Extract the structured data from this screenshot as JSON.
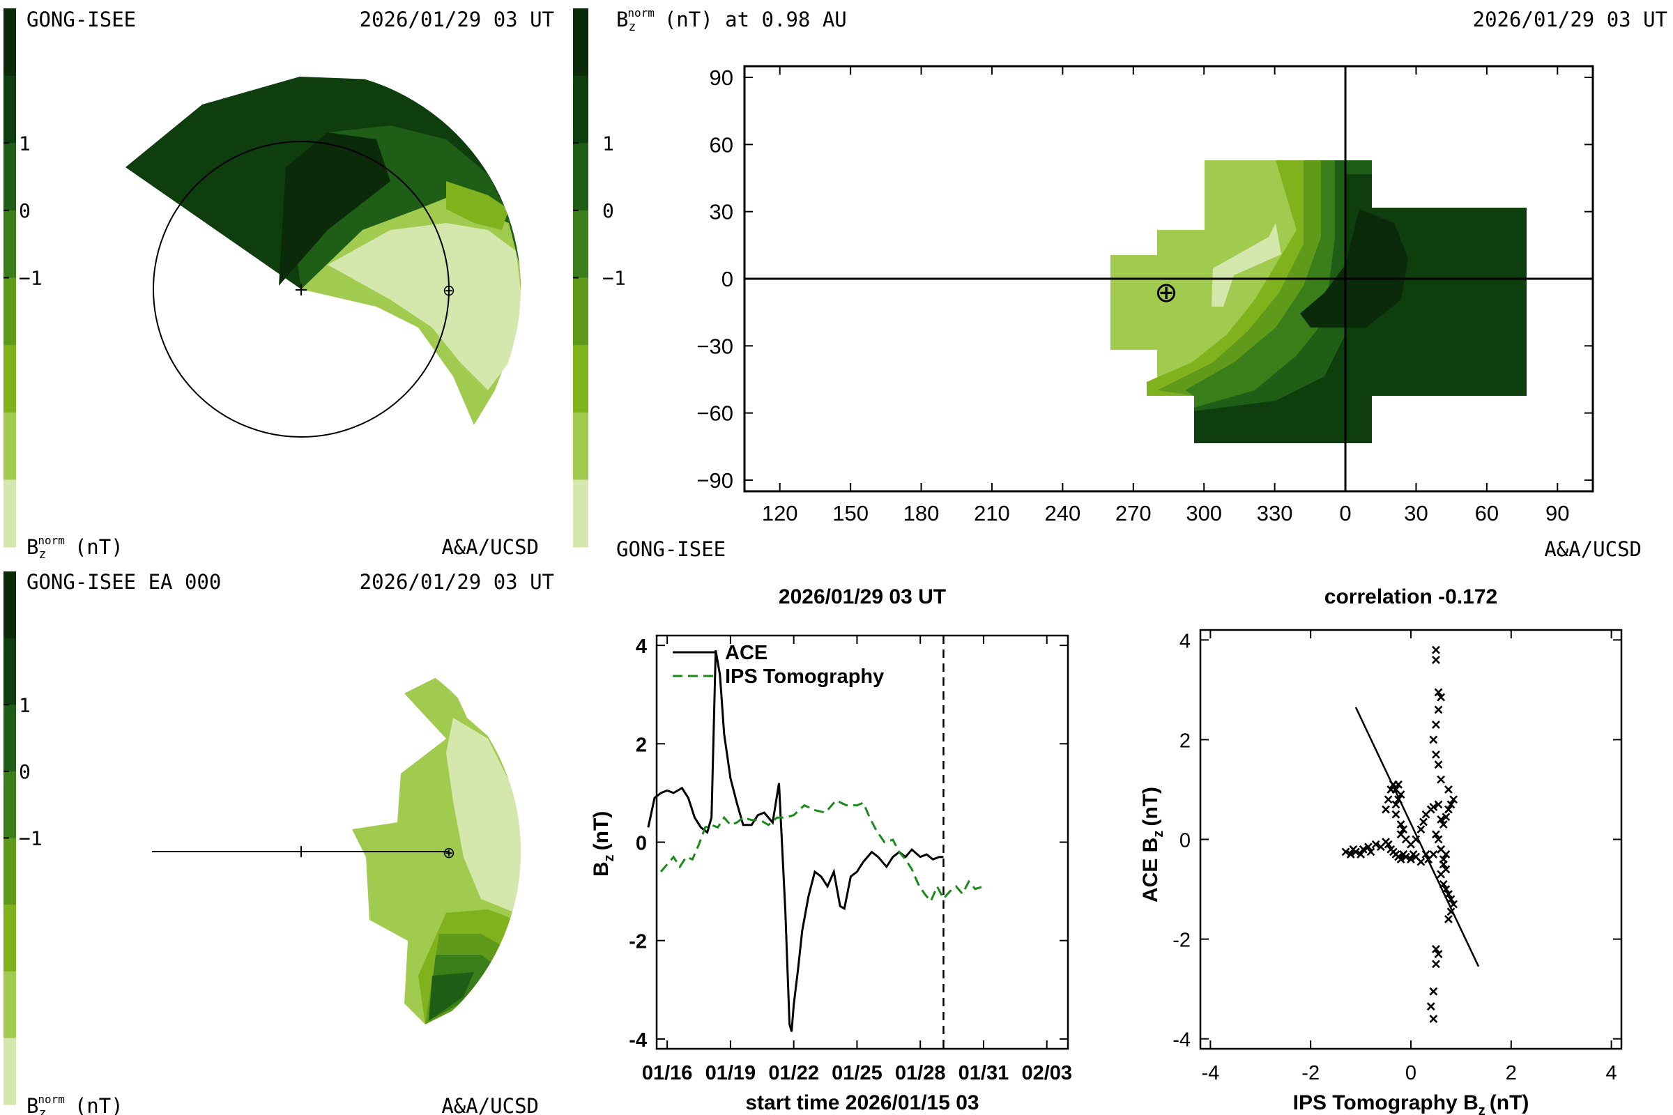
{
  "colors": {
    "level_-4": "#d4e7ad",
    "level_-3": "#a1cb4f",
    "level_-2": "#7fb21c",
    "level_-1": "#5f9a1a",
    "level_0": "#3a7e19",
    "level_1": "#1f5e16",
    "level_2": "#0f3e0e",
    "level_3": "#0b2a09",
    "ace_line": "#000000",
    "ips_line": "#1a8a1a"
  },
  "colorbar": {
    "levels": [
      -4,
      -3,
      -2,
      -1,
      0,
      1,
      2,
      3
    ],
    "ticks": [
      "1",
      "0",
      "−1"
    ],
    "label_main": "B",
    "label_sub": "z",
    "label_sup": "norm",
    "label_unit": "(nT)"
  },
  "panel_top_left": {
    "title_left": "GONG-ISEE",
    "title_right": "2026/01/29 03 UT",
    "credit": "A&A/UCSD",
    "sun_marker": "+",
    "earth_marker": "⊕"
  },
  "panel_bottom_left": {
    "title_left": "GONG-ISEE EA 000",
    "title_right": "2026/01/29 03 UT",
    "credit": "A&A/UCSD",
    "earth_marker": "⊕"
  },
  "panel_map": {
    "title_main": "B",
    "title_sub": "z",
    "title_sup": "norm",
    "title_rest": "(nT) at 0.98 AU",
    "title_right": "2026/01/29 03 UT",
    "credit_left": "GONG-ISEE",
    "credit_right": "A&A/UCSD",
    "earth_marker": "⊕"
  },
  "chart_data": [
    {
      "type": "heatmap",
      "name": "map",
      "x_ticks": [
        "120",
        "150",
        "180",
        "210",
        "240",
        "270",
        "300",
        "330",
        "0",
        "30",
        "60",
        "90"
      ],
      "y_ticks": [
        "90",
        "60",
        "30",
        "0",
        "−30",
        "−60",
        "−90"
      ],
      "x_range": [
        105,
        465
      ],
      "y_range": [
        -95,
        95
      ],
      "earth_position": [
        287,
        -5
      ]
    },
    {
      "type": "line",
      "name": "timeseries",
      "title": "2026/01/29 03 UT",
      "xlabel": "start time 2026/01/15 03",
      "ylabel_main": "B",
      "ylabel_sub": "z",
      "ylabel_unit": "(nT)",
      "x_range": [
        15.5,
        35
      ],
      "ylim": [
        -4.2,
        4.2
      ],
      "x_ticks": [
        {
          "v": 16,
          "label": "01/16"
        },
        {
          "v": 19,
          "label": "01/19"
        },
        {
          "v": 22,
          "label": "01/22"
        },
        {
          "v": 25,
          "label": "01/25"
        },
        {
          "v": 28,
          "label": "01/28"
        },
        {
          "v": 31,
          "label": "01/31"
        },
        {
          "v": 34,
          "label": "02/03"
        }
      ],
      "y_ticks": [
        4,
        2,
        0,
        -2,
        -4
      ],
      "current_time": 29.1,
      "legend_position": "top-left",
      "series": [
        {
          "name": "ACE",
          "style": "solid",
          "x": [
            15.1,
            15.4,
            15.7,
            16.0,
            16.3,
            16.7,
            17.0,
            17.3,
            17.6,
            17.9,
            18.1,
            18.3,
            18.5,
            18.7,
            19.0,
            19.3,
            19.6,
            20.0,
            20.3,
            20.6,
            21.0,
            21.3,
            21.6,
            21.8,
            21.9,
            22.0,
            22.2,
            22.4,
            22.7,
            23.0,
            23.3,
            23.6,
            23.9,
            24.2,
            24.4,
            24.7,
            25.0,
            25.3,
            25.7,
            26.0,
            26.4,
            26.7,
            27.0,
            27.3,
            27.6,
            28.0,
            28.3,
            28.6,
            28.9,
            29.1
          ],
          "y": [
            0.3,
            0.9,
            1.0,
            1.05,
            1.0,
            1.1,
            0.9,
            0.5,
            0.3,
            0.2,
            0.5,
            3.9,
            3.4,
            2.2,
            1.3,
            0.8,
            0.35,
            0.35,
            0.55,
            0.6,
            0.4,
            1.2,
            -1.4,
            -3.7,
            -3.85,
            -3.3,
            -2.6,
            -1.8,
            -1.1,
            -0.6,
            -0.7,
            -0.9,
            -0.6,
            -1.3,
            -1.35,
            -0.7,
            -0.6,
            -0.4,
            -0.2,
            -0.3,
            -0.5,
            -0.3,
            -0.2,
            -0.3,
            -0.15,
            -0.3,
            -0.25,
            -0.35,
            -0.3,
            -0.3
          ]
        },
        {
          "name": "IPS Tomography",
          "style": "dashed",
          "x": [
            15.7,
            16.0,
            16.3,
            16.6,
            16.9,
            17.2,
            17.5,
            17.8,
            18.1,
            18.4,
            18.7,
            19.0,
            19.3,
            19.6,
            20.0,
            20.4,
            20.8,
            21.2,
            21.6,
            22.0,
            22.5,
            23.0,
            23.5,
            24.0,
            24.5,
            25.0,
            25.3,
            25.6,
            25.9,
            26.3,
            26.7,
            27.0,
            27.3,
            27.6,
            27.9,
            28.2,
            28.5,
            28.8,
            29.1,
            29.4,
            29.7,
            30.0,
            30.3,
            30.6,
            31.0
          ],
          "y": [
            -0.6,
            -0.45,
            -0.3,
            -0.5,
            -0.3,
            -0.35,
            -0.05,
            0.3,
            0.35,
            0.3,
            0.5,
            0.35,
            0.4,
            0.5,
            0.45,
            0.45,
            0.35,
            0.5,
            0.5,
            0.55,
            0.75,
            0.65,
            0.6,
            0.85,
            0.75,
            0.75,
            0.8,
            0.5,
            0.25,
            0.0,
            0.05,
            -0.2,
            -0.35,
            -0.55,
            -0.85,
            -1.05,
            -1.2,
            -0.9,
            -1.15,
            -1.0,
            -0.9,
            -1.05,
            -0.8,
            -0.95,
            -0.9
          ]
        }
      ]
    },
    {
      "type": "scatter",
      "name": "correlation",
      "title": "correlation -0.172",
      "xlabel_main": "IPS Tomography B",
      "xlabel_sub": "z",
      "xlabel_unit": "(nT)",
      "ylabel_main": "ACE B",
      "ylabel_sub": "z",
      "ylabel_unit": "(nT)",
      "xlim": [
        -4.2,
        4.2
      ],
      "ylim": [
        -4.2,
        4.2
      ],
      "x_ticks": [
        -4,
        -2,
        0,
        2,
        4
      ],
      "y_ticks": [
        4,
        2,
        0,
        -2,
        -4
      ],
      "fit_line": {
        "x": [
          -1.1,
          1.35
        ],
        "y": [
          2.65,
          -2.55
        ]
      },
      "points": {
        "x": [
          -1.3,
          -1.2,
          -1.15,
          -1.1,
          -1.0,
          -0.95,
          -0.85,
          -0.8,
          -0.7,
          -0.6,
          -0.5,
          -0.45,
          -0.4,
          -0.35,
          -0.3,
          -0.25,
          -0.2,
          -0.15,
          -0.1,
          0.0,
          0.05,
          0.1,
          0.2,
          0.3,
          0.35,
          -0.3,
          -0.25,
          -0.2,
          -0.35,
          -0.4,
          -0.45,
          -0.5,
          -0.3,
          -0.25,
          -0.3,
          -0.2,
          -0.15,
          -0.2,
          -0.1,
          0.0,
          0.1,
          0.2,
          0.25,
          0.3,
          0.4,
          0.45,
          0.55,
          0.6,
          0.65,
          0.7,
          0.75,
          0.8,
          0.85,
          0.75,
          0.6,
          0.55,
          0.5,
          0.45,
          0.5,
          0.55,
          0.6,
          0.55,
          0.6,
          0.7,
          0.65,
          0.6,
          0.65,
          0.7,
          0.75,
          0.8,
          0.85,
          0.8,
          0.75,
          0.7,
          0.65,
          0.6,
          0.55,
          0.5,
          0.45,
          0.5,
          0.55,
          0.5,
          0.45,
          0.4,
          0.45,
          0.5,
          0.5
        ],
        "y": [
          -0.25,
          -0.3,
          -0.2,
          -0.25,
          -0.3,
          -0.2,
          -0.15,
          -0.25,
          -0.1,
          -0.15,
          -0.05,
          -0.1,
          -0.2,
          -0.25,
          -0.3,
          -0.35,
          -0.4,
          -0.3,
          -0.35,
          -0.4,
          -0.3,
          -0.35,
          -0.45,
          -0.3,
          -0.4,
          1.0,
          1.1,
          0.9,
          1.1,
          1.0,
          0.8,
          0.6,
          0.7,
          0.8,
          0.5,
          0.3,
          0.2,
          0.1,
          0.0,
          -0.1,
          0.0,
          0.2,
          0.35,
          0.5,
          0.6,
          0.65,
          0.7,
          0.4,
          0.3,
          0.45,
          0.6,
          0.7,
          0.8,
          1.0,
          1.2,
          1.5,
          1.7,
          2.0,
          2.3,
          2.6,
          2.85,
          2.95,
          -0.2,
          -0.3,
          -0.5,
          -0.7,
          -0.9,
          -1.0,
          -1.1,
          -1.2,
          -1.3,
          -1.45,
          -1.6,
          -0.6,
          -0.4,
          -0.2,
          0.0,
          0.1,
          -0.3,
          -2.2,
          -2.3,
          -2.5,
          -3.05,
          -3.35,
          -3.6,
          3.8,
          3.6
        ]
      }
    }
  ]
}
